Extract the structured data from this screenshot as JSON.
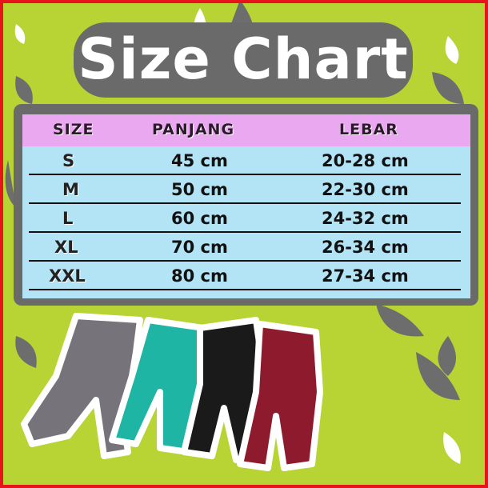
{
  "title": "Size Chart",
  "table": {
    "headers": [
      "SIZE",
      "PANJANG",
      "LEBAR"
    ],
    "rows": [
      {
        "size": "S",
        "panjang": "45 cm",
        "lebar": "20-28 cm"
      },
      {
        "size": "M",
        "panjang": "50 cm",
        "lebar": "22-30 cm"
      },
      {
        "size": "L",
        "panjang": "60 cm",
        "lebar": "24-32 cm"
      },
      {
        "size": "XL",
        "panjang": "70 cm",
        "lebar": "26-34 cm"
      },
      {
        "size": "XXL",
        "panjang": "80 cm",
        "lebar": "27-34 cm"
      }
    ]
  },
  "colors": {
    "background": "#b8d434",
    "panel": "#6a6a6a",
    "header": "#eaa8f0",
    "body": "#b3e4f6",
    "border": "#e8141b",
    "pants": [
      "#77737a",
      "#1fb5a5",
      "#1a1a1a",
      "#8e1a2e"
    ]
  }
}
